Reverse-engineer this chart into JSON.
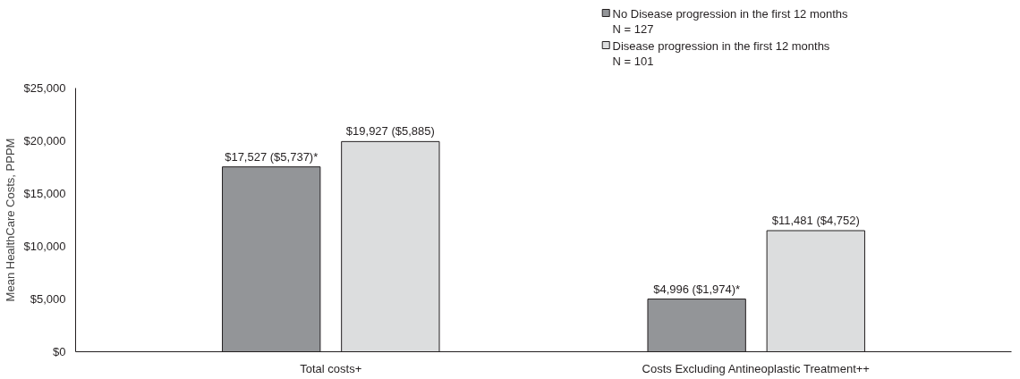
{
  "chart_data": {
    "type": "bar",
    "ylabel": "Mean HealthCare Costs, PPPM",
    "categories": [
      "Total costs+",
      "Costs Excluding Antineoplastic Treatment++"
    ],
    "series": [
      {
        "name": "No Disease progression in the first 12 months\nN = 127",
        "color": "#939598",
        "values": [
          17527,
          4996
        ],
        "value_labels": [
          "$17,527 ($5,737)*",
          "$4,996 ($1,974)*"
        ]
      },
      {
        "name": "Disease progression in the first 12 months\nN = 101",
        "color": "#dcddde",
        "values": [
          19927,
          11481
        ],
        "value_labels": [
          "$19,927 ($5,885)",
          "$11,481 ($4,752)"
        ]
      }
    ],
    "ylim": [
      0,
      25000
    ],
    "yticks": [
      {
        "value": 0,
        "label": "$0"
      },
      {
        "value": 5000,
        "label": "$5,000"
      },
      {
        "value": 10000,
        "label": "$10,000"
      },
      {
        "value": 15000,
        "label": "$15,000"
      },
      {
        "value": 20000,
        "label": "$20,000"
      },
      {
        "value": 25000,
        "label": "$25,000"
      }
    ],
    "grid": false,
    "legend": "top right"
  }
}
